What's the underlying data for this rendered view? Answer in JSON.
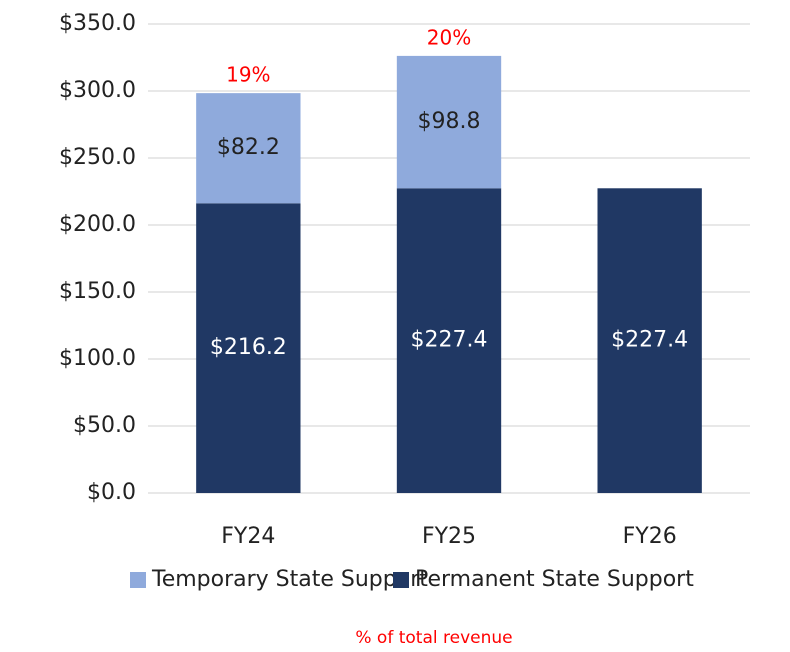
{
  "chart_data": {
    "type": "stacked_bar",
    "categories": [
      "FY24",
      "FY25",
      "FY26"
    ],
    "series": [
      {
        "name": "Permanent State Support",
        "color": "#203864",
        "values": [
          216.2,
          227.4,
          227.4
        ],
        "value_labels": [
          "$216.2",
          "$227.4",
          "$227.4"
        ]
      },
      {
        "name": "Temporary State Support",
        "color": "#8faadc",
        "values": [
          82.2,
          98.8,
          null
        ],
        "value_labels": [
          "$82.2",
          "$98.8",
          null
        ]
      }
    ],
    "percent_labels": [
      "19%",
      "20%",
      null
    ],
    "ylim": [
      0,
      350
    ],
    "yticks": [
      {
        "value": 0,
        "label": "$0.0"
      },
      {
        "value": 50,
        "label": "$50.0"
      },
      {
        "value": 100,
        "label": "$100.0"
      },
      {
        "value": 150,
        "label": "$150.0"
      },
      {
        "value": 200,
        "label": "$200.0"
      },
      {
        "value": 250,
        "label": "$250.0"
      },
      {
        "value": 300,
        "label": "$300.0"
      },
      {
        "value": 350,
        "label": "$350.0"
      }
    ],
    "grid": true,
    "legend": "bottom",
    "note": "% of total revenue"
  }
}
